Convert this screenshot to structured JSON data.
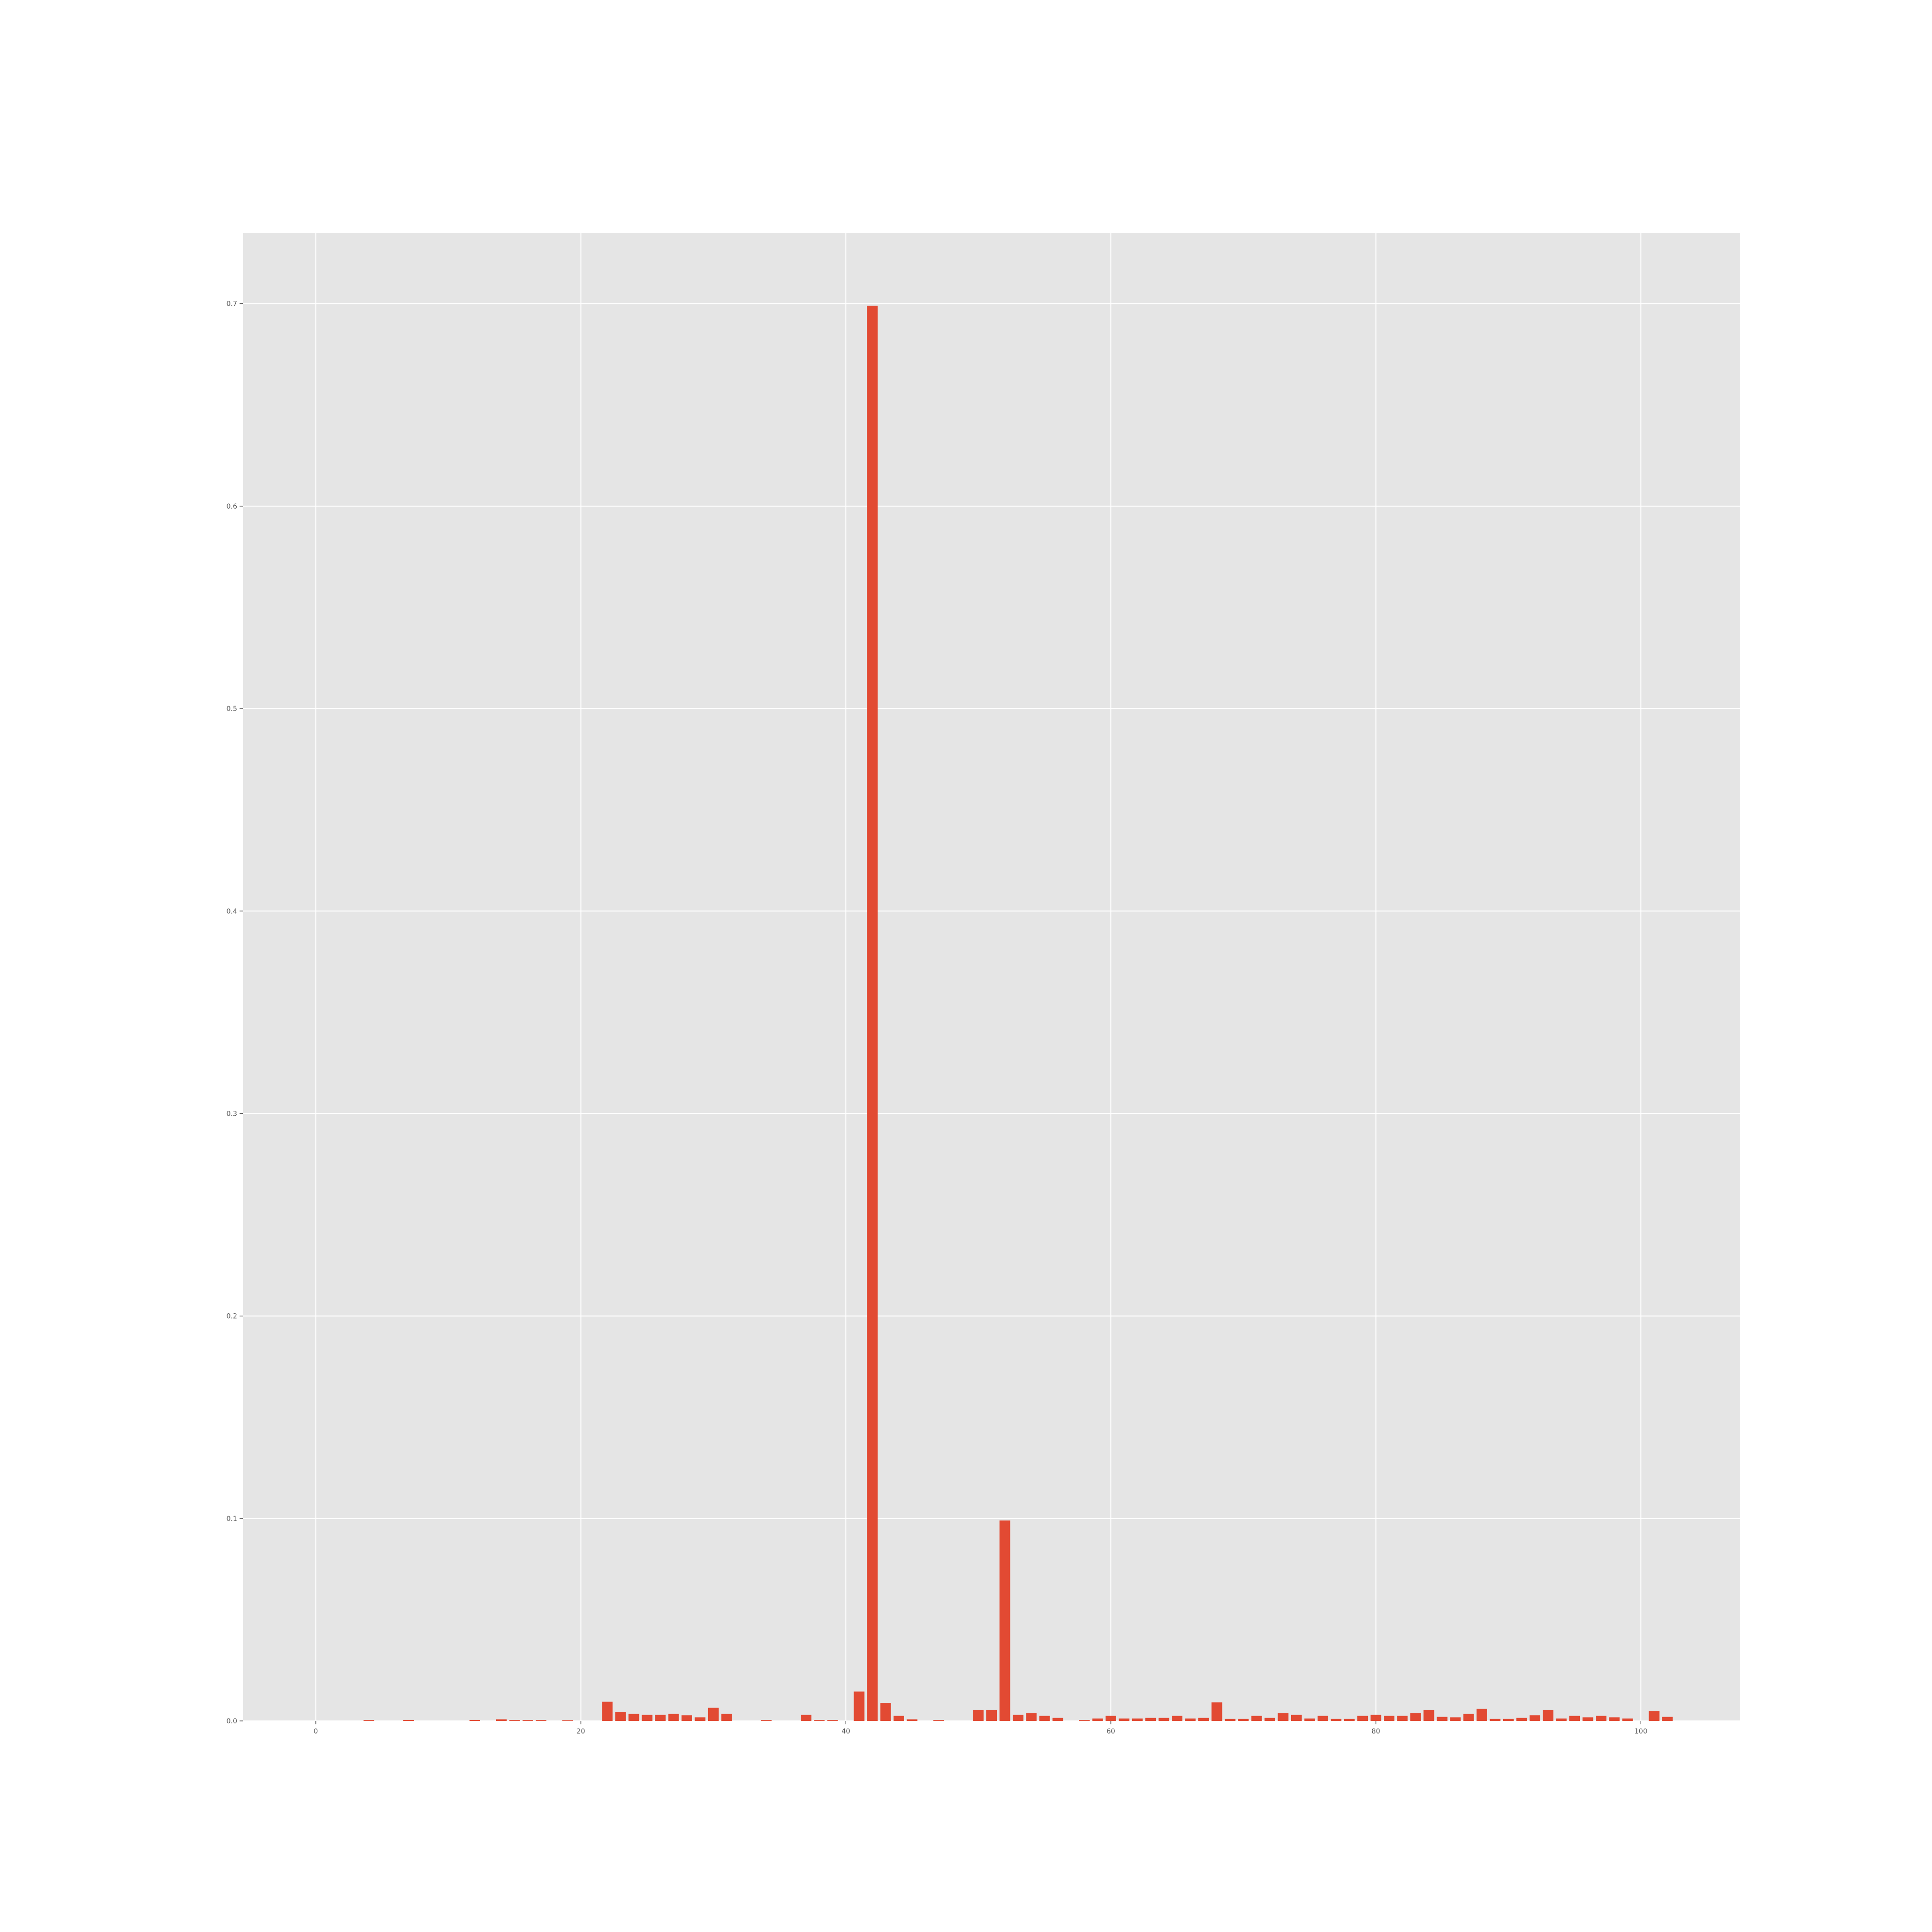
{
  "chart_data": {
    "type": "bar",
    "title": "",
    "xlabel": "",
    "ylabel": "",
    "xlim": [
      -5.5,
      107.5
    ],
    "ylim": [
      0,
      0.735
    ],
    "grid": true,
    "colors": {
      "bar": "#e24a33",
      "plot_background": "#e5e5e5",
      "grid": "#ffffff",
      "tick_label": "#555555"
    },
    "x_ticks": [
      0,
      20,
      40,
      60,
      80,
      100
    ],
    "x_tick_labels": [
      "0",
      "20",
      "40",
      "60",
      "80",
      "100"
    ],
    "y_ticks": [
      0.0,
      0.1,
      0.2,
      0.3,
      0.4,
      0.5,
      0.6,
      0.7
    ],
    "y_tick_labels": [
      "0.0",
      "0.1",
      "0.2",
      "0.3",
      "0.4",
      "0.5",
      "0.6",
      "0.7"
    ],
    "x": [
      0,
      1,
      2,
      3,
      4,
      5,
      6,
      7,
      8,
      9,
      10,
      11,
      12,
      13,
      14,
      15,
      16,
      17,
      18,
      19,
      20,
      21,
      22,
      23,
      24,
      25,
      26,
      27,
      28,
      29,
      30,
      31,
      32,
      33,
      34,
      35,
      36,
      37,
      38,
      39,
      40,
      41,
      42,
      43,
      44,
      45,
      46,
      47,
      48,
      49,
      50,
      51,
      52,
      53,
      54,
      55,
      56,
      57,
      58,
      59,
      60,
      61,
      62,
      63,
      64,
      65,
      66,
      67,
      68,
      69,
      70,
      71,
      72,
      73,
      74,
      75,
      76,
      77,
      78,
      79,
      80,
      81,
      82,
      83,
      84,
      85,
      86,
      87,
      88,
      89,
      90,
      91,
      92,
      93,
      94,
      95,
      96,
      97,
      98,
      99,
      100,
      101,
      102
    ],
    "values": [
      0,
      0,
      0,
      0,
      0.0004,
      0,
      0,
      0.0005,
      0,
      0,
      0,
      0,
      0.0005,
      0,
      0.0008,
      0.0004,
      0.0004,
      0.0004,
      0,
      0.0003,
      0,
      0,
      0.0095,
      0.0045,
      0.0035,
      0.003,
      0.003,
      0.0035,
      0.0028,
      0.0018,
      0.0065,
      0.0035,
      0,
      0,
      0.0004,
      0,
      0,
      0.003,
      0.0004,
      0.0004,
      0,
      0.0145,
      0.699,
      0.0088,
      0.0025,
      0.0008,
      0,
      0.0004,
      0,
      0,
      0.0055,
      0.0055,
      0.099,
      0.003,
      0.0038,
      0.0025,
      0.0015,
      0,
      0.0004,
      0.0012,
      0.0025,
      0.0012,
      0.0012,
      0.0015,
      0.0015,
      0.0025,
      0.0012,
      0.0015,
      0.0092,
      0.001,
      0.001,
      0.0025,
      0.0015,
      0.0038,
      0.003,
      0.0012,
      0.0025,
      0.001,
      0.001,
      0.0025,
      0.003,
      0.0025,
      0.0025,
      0.0038,
      0.0055,
      0.002,
      0.0018,
      0.0035,
      0.006,
      0.001,
      0.001,
      0.0015,
      0.0028,
      0.0055,
      0.0012,
      0.0025,
      0.0018,
      0.0025,
      0.0018,
      0.0012,
      0,
      0.0048,
      0.002
    ]
  }
}
